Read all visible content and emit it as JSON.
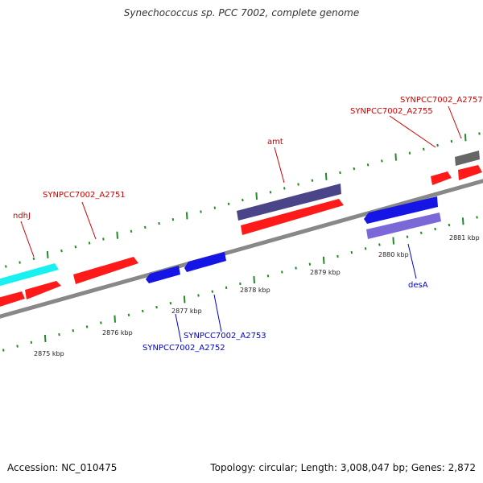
{
  "title": "Synechococcus sp. PCC 7002, complete genome",
  "footer": {
    "accession": "Accession: NC_010475",
    "summary": "Topology: circular; Length: 3,008,047 bp; Genes: 2,872"
  },
  "colors": {
    "gene_red": "#ff1a1a",
    "gene_blue": "#1515e6",
    "gene_cyan": "#19f0f0",
    "gene_navy": "#4a4488",
    "gene_violet": "#7a68d8",
    "gene_gray": "#666666",
    "backbone": "#888888",
    "tick": "#228b22",
    "label_red": "#cc0000",
    "label_blue": "#0000cc"
  },
  "ticks": [
    "2875 kbp",
    "2876 kbp",
    "2877 kbp",
    "2878 kbp",
    "2879 kbp",
    "2880 kbp",
    "2881 kbp"
  ],
  "labels": {
    "ndhj": "ndhJ",
    "a2751": "SYNPCC7002_A2751",
    "amt": "amt",
    "a2755": "SYNPCC7002_A2755",
    "a2757": "SYNPCC7002_A2757",
    "a2752": "SYNPCC7002_A2752",
    "a2753": "SYNPCC7002_A2753",
    "desa": "desA"
  }
}
